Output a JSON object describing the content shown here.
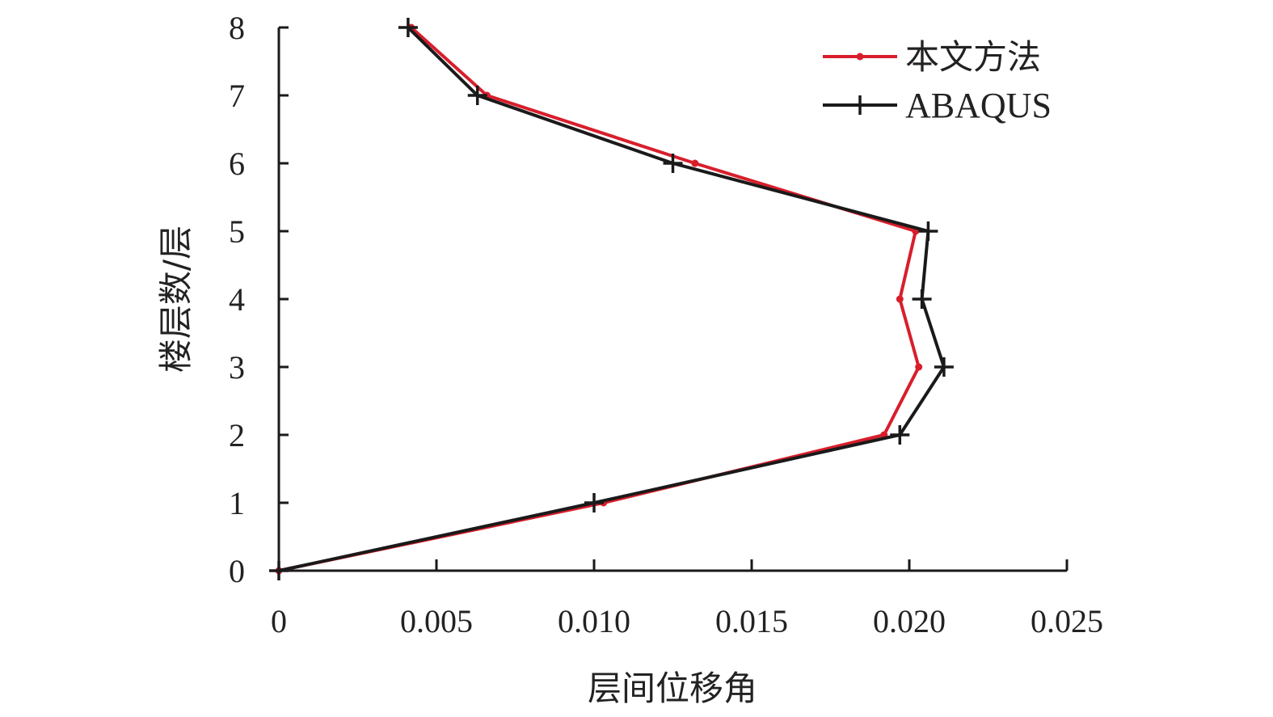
{
  "chart_data": {
    "type": "line",
    "title": "",
    "xlabel": "层间位移角",
    "ylabel": "楼层数/层",
    "xlim": [
      0,
      0.025
    ],
    "ylim": [
      0,
      8
    ],
    "x_ticks": [
      "0",
      "0.005",
      "0.010",
      "0.015",
      "0.020",
      "0.025"
    ],
    "y_ticks": [
      "0",
      "1",
      "2",
      "3",
      "4",
      "5",
      "6",
      "7",
      "8"
    ],
    "grid": false,
    "legend_position": "top-right",
    "series": [
      {
        "name": "本文方法",
        "color": "#d81e2c",
        "marker": "dot",
        "points": [
          {
            "x": 0.0,
            "y": 0
          },
          {
            "x": 0.0103,
            "y": 1
          },
          {
            "x": 0.0192,
            "y": 2
          },
          {
            "x": 0.0203,
            "y": 3
          },
          {
            "x": 0.0197,
            "y": 4
          },
          {
            "x": 0.0202,
            "y": 5
          },
          {
            "x": 0.0132,
            "y": 6
          },
          {
            "x": 0.0066,
            "y": 7
          },
          {
            "x": 0.0042,
            "y": 8
          }
        ]
      },
      {
        "name": "ABAQUS",
        "color": "#1a1a1a",
        "marker": "plus",
        "points": [
          {
            "x": 0.0,
            "y": 0
          },
          {
            "x": 0.01,
            "y": 1
          },
          {
            "x": 0.0197,
            "y": 2
          },
          {
            "x": 0.0211,
            "y": 3
          },
          {
            "x": 0.0204,
            "y": 4
          },
          {
            "x": 0.0206,
            "y": 5
          },
          {
            "x": 0.0125,
            "y": 6
          },
          {
            "x": 0.0063,
            "y": 7
          },
          {
            "x": 0.0041,
            "y": 8
          }
        ]
      }
    ]
  }
}
